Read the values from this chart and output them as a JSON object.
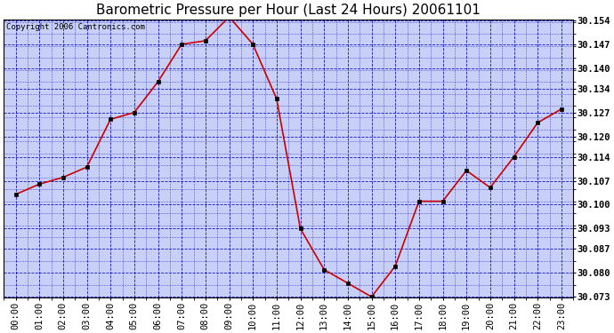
{
  "title": "Barometric Pressure per Hour (Last 24 Hours) 20061101",
  "copyright_text": "Copyright 2006 Cantronics.com",
  "hours": [
    "00:00",
    "01:00",
    "02:00",
    "03:00",
    "04:00",
    "05:00",
    "06:00",
    "07:00",
    "08:00",
    "09:00",
    "10:00",
    "11:00",
    "12:00",
    "13:00",
    "14:00",
    "15:00",
    "16:00",
    "17:00",
    "18:00",
    "19:00",
    "20:00",
    "21:00",
    "22:00",
    "23:00"
  ],
  "values": [
    30.103,
    30.106,
    30.108,
    30.111,
    30.125,
    30.127,
    30.136,
    30.147,
    30.148,
    30.155,
    30.147,
    30.131,
    30.093,
    30.081,
    30.077,
    30.073,
    30.082,
    30.101,
    30.101,
    30.11,
    30.105,
    30.114,
    30.124,
    30.128
  ],
  "ylim_min": 30.073,
  "ylim_max": 30.154,
  "ytick_values": [
    30.073,
    30.08,
    30.087,
    30.093,
    30.1,
    30.107,
    30.114,
    30.12,
    30.127,
    30.134,
    30.14,
    30.147,
    30.154
  ],
  "line_color": "#cc0000",
  "marker_color": "#000000",
  "plot_bg_color": "#c8d0f8",
  "grid_color": "#0000bb",
  "title_color": "#000000",
  "title_fontsize": 11,
  "copyright_fontsize": 6.5,
  "tick_label_fontsize": 7.5,
  "figure_bg_color": "#ffffff"
}
